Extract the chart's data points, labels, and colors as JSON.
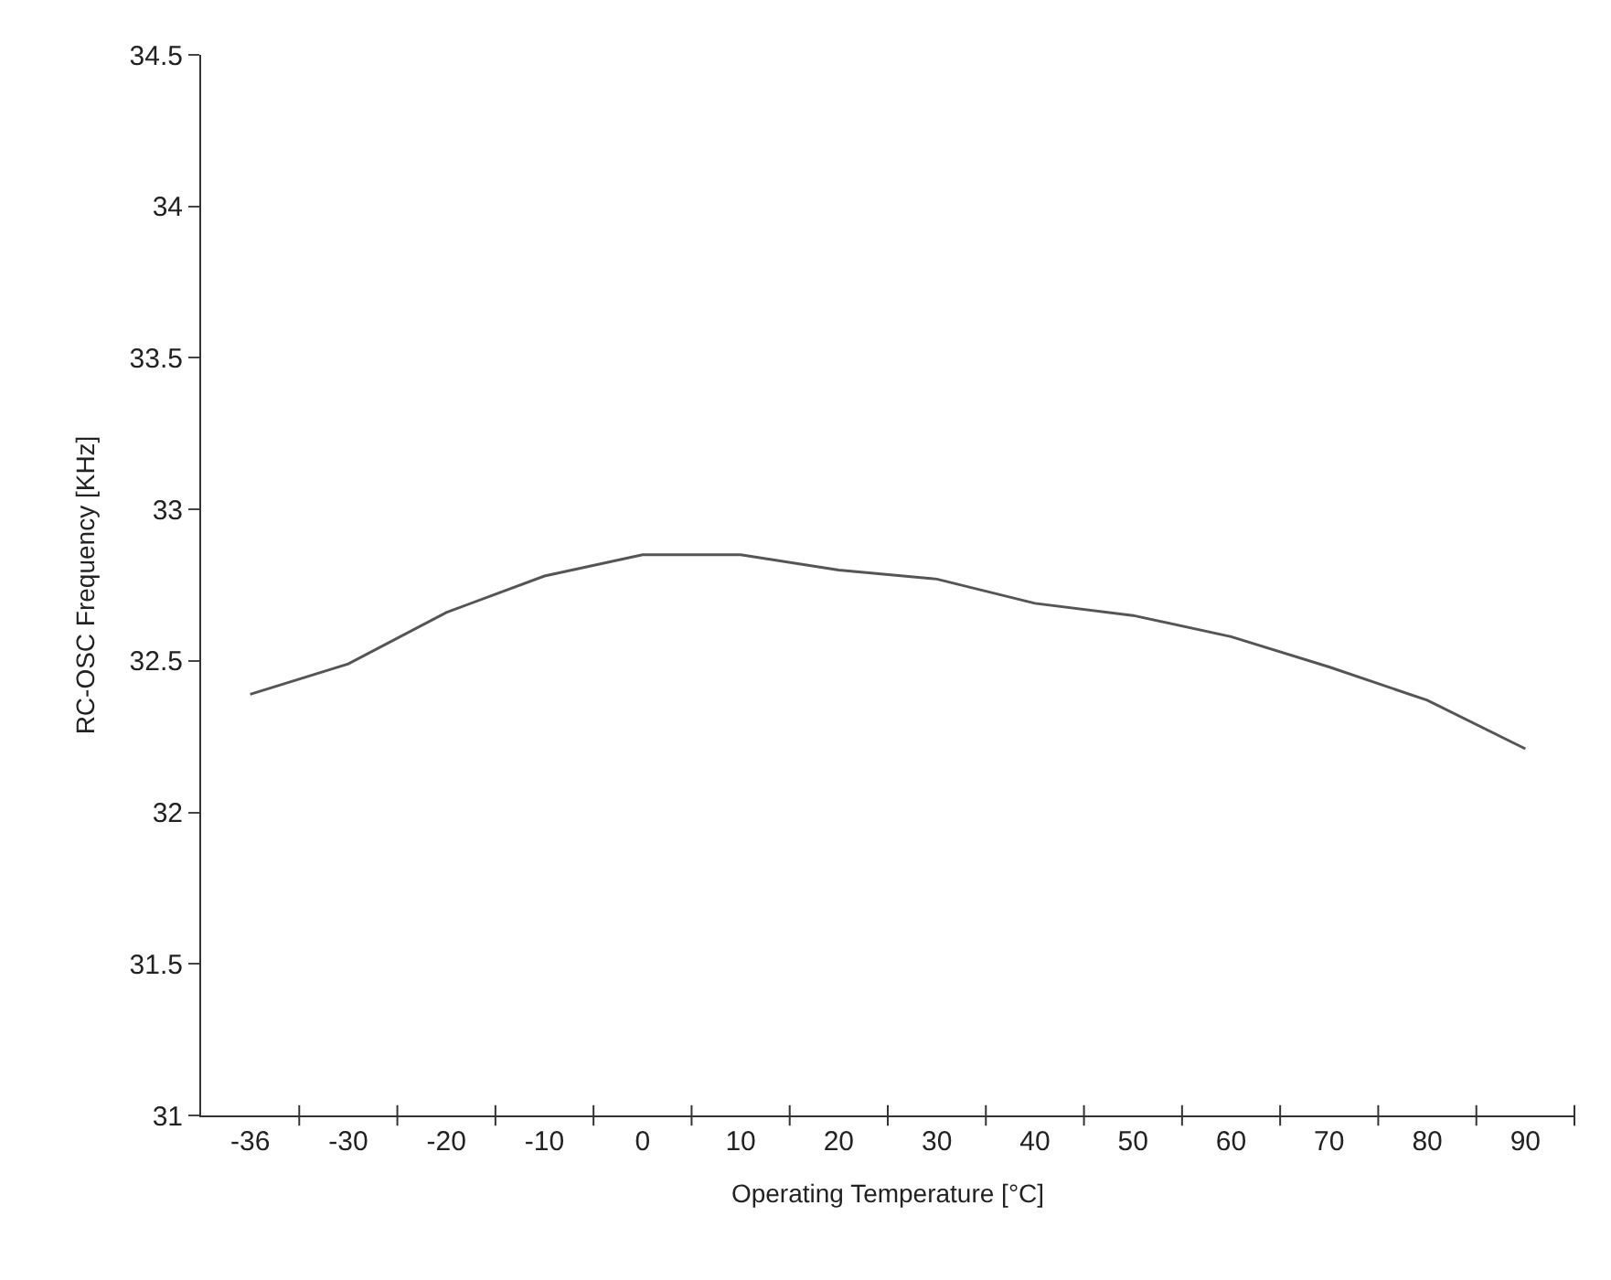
{
  "chart_data": {
    "type": "line",
    "xlabel": "Operating Temperature [°C]",
    "ylabel": "RC-OSC Frequency [KHz]",
    "categories": [
      "-36",
      "-30",
      "-20",
      "-10",
      "0",
      "10",
      "20",
      "30",
      "40",
      "50",
      "60",
      "70",
      "80",
      "90"
    ],
    "series": [
      {
        "color": "#555555",
        "values": [
          32.39,
          32.49,
          32.66,
          32.78,
          32.85,
          32.85,
          32.8,
          32.77,
          32.69,
          32.65,
          32.58,
          32.48,
          32.37,
          32.21
        ]
      }
    ],
    "ylim": [
      31,
      34.5
    ],
    "yticks": [
      31,
      31.5,
      32,
      32.5,
      33,
      33.5,
      34,
      34.5
    ],
    "marker": "none",
    "line_style": "solid"
  }
}
